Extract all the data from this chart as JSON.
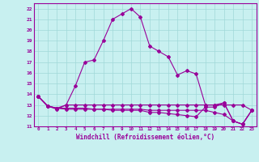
{
  "xlabel": "Windchill (Refroidissement éolien,°C)",
  "bg_color": "#c8f0f0",
  "line_color": "#990099",
  "grid_color": "#a0d8d8",
  "xlim": [
    -0.5,
    23.5
  ],
  "ylim": [
    11,
    22.5
  ],
  "xticks": [
    0,
    1,
    2,
    3,
    4,
    5,
    6,
    7,
    8,
    9,
    10,
    11,
    12,
    13,
    14,
    15,
    16,
    17,
    18,
    19,
    20,
    21,
    22,
    23
  ],
  "yticks": [
    11,
    12,
    13,
    14,
    15,
    16,
    17,
    18,
    19,
    20,
    21,
    22
  ],
  "series": [
    [
      13.8,
      12.9,
      12.6,
      13.0,
      14.8,
      17.0,
      17.2,
      19.0,
      21.0,
      21.5,
      22.0,
      21.2,
      18.5,
      18.0,
      17.5,
      15.8,
      16.2,
      15.9,
      13.0,
      13.0,
      13.2,
      11.5,
      11.2,
      12.5
    ],
    [
      13.8,
      12.9,
      12.7,
      13.0,
      13.0,
      13.0,
      13.0,
      13.0,
      13.0,
      13.0,
      13.0,
      13.0,
      13.0,
      13.0,
      13.0,
      13.0,
      13.0,
      13.0,
      13.0,
      13.0,
      13.0,
      13.0,
      13.0,
      12.5
    ],
    [
      13.8,
      12.9,
      12.7,
      12.6,
      12.6,
      12.6,
      12.6,
      12.6,
      12.6,
      12.6,
      12.6,
      12.6,
      12.5,
      12.5,
      12.5,
      12.5,
      12.5,
      12.5,
      12.5,
      12.3,
      12.1,
      11.5,
      11.2,
      12.5
    ],
    [
      13.8,
      12.9,
      12.7,
      12.7,
      12.7,
      12.7,
      12.6,
      12.6,
      12.5,
      12.5,
      12.5,
      12.5,
      12.3,
      12.3,
      12.2,
      12.1,
      12.0,
      11.9,
      12.8,
      12.8,
      13.2,
      11.5,
      11.2,
      12.5
    ]
  ]
}
